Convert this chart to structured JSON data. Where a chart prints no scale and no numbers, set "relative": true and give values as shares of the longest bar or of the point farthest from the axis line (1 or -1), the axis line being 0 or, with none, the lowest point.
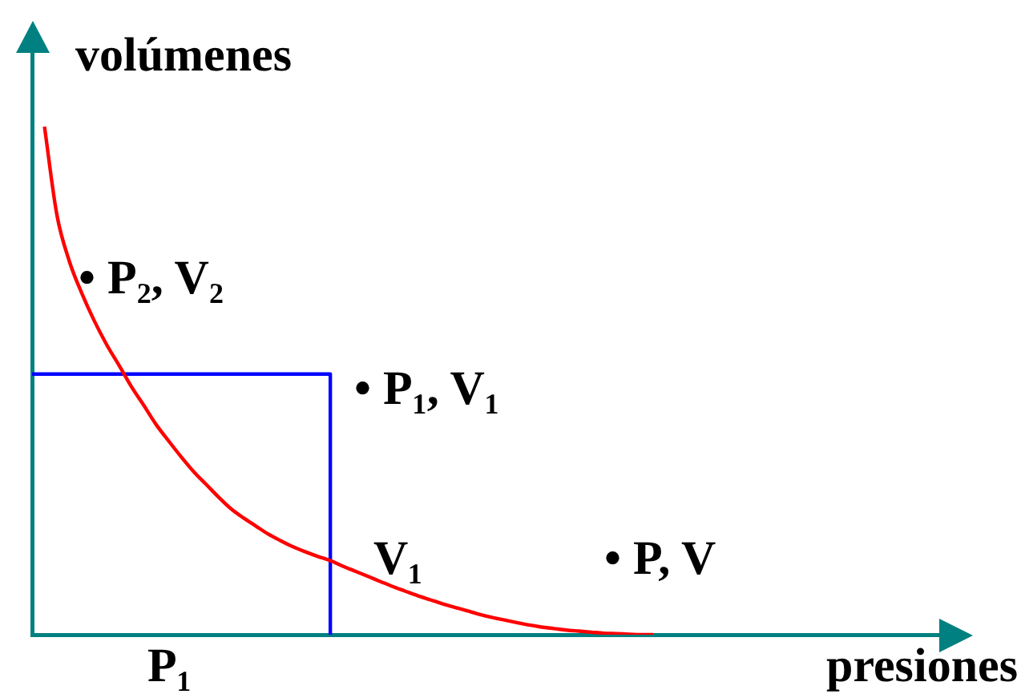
{
  "chart_data": {
    "type": "line",
    "relative": true,
    "xlabel": "presiones",
    "ylabel": "volúmenes",
    "categories": [
      null,
      null,
      null,
      null,
      null,
      null,
      null,
      null,
      null,
      null,
      null,
      null,
      null,
      null,
      null,
      null,
      null,
      null,
      null,
      null,
      null,
      null,
      null,
      null,
      null,
      null,
      null,
      null,
      null,
      null,
      null,
      null,
      null,
      null,
      null,
      null,
      null,
      null,
      null,
      null,
      null,
      null,
      null,
      null,
      null,
      null,
      null,
      null,
      null,
      null,
      null,
      null,
      null,
      null,
      null,
      null,
      null,
      null,
      null,
      null,
      null,
      null,
      null,
      null,
      null,
      null,
      null,
      null,
      null,
      null,
      null,
      null,
      null,
      null
    ],
    "series": [
      {
        "color": "#ff0000",
        "values": [
          null,
          1,
          0.826,
          0.735,
          0.672,
          0.618,
          0.571,
          0.53,
          0.488,
          0.451,
          0.413,
          0.381,
          0.35,
          0.321,
          0.296,
          0.271,
          0.248,
          0.23,
          0.214,
          0.198,
          0.185,
          0.173,
          0.163,
          0.154,
          0.146,
          0.135,
          0.125,
          0.115,
          0.105,
          0.095,
          0.086,
          0.077,
          0.069,
          0.061,
          0.054,
          0.047,
          0.04,
          0.034,
          0.029,
          0.024,
          0.019,
          0.015,
          0.012,
          0.009,
          0.007,
          0.005,
          0.003,
          0.002,
          0.001,
          0,
          0,
          null,
          null,
          null,
          null,
          null,
          null,
          null,
          null,
          null,
          null,
          null,
          null,
          null,
          null,
          null,
          null,
          null,
          null,
          null,
          null,
          null,
          null,
          null
        ]
      },
      {
        "type": "step",
        "color": "#0000ff",
        "values": [
          0.513,
          0.513,
          0.513,
          0.513,
          0.513,
          0.513,
          0.513,
          0.513,
          0.513,
          0.513,
          0.513,
          0.513,
          0.513,
          0.513,
          0.513,
          0.513,
          0.513,
          0.513,
          0.513,
          0.513,
          0.513,
          0.513,
          0.513,
          0.513,
          0,
          null,
          null,
          null,
          null,
          null,
          null,
          null,
          null,
          null,
          null,
          null,
          null,
          null,
          null,
          null,
          null,
          null,
          null,
          null,
          null,
          null,
          null,
          null,
          null,
          null,
          null,
          null,
          null,
          null,
          null,
          null,
          null,
          null,
          null,
          null,
          null,
          null,
          null,
          null,
          null,
          null,
          null,
          null,
          null,
          null,
          null,
          null,
          null,
          null
        ]
      }
    ],
    "annotations": [
      "• P₂, V₂",
      "• P₁, V₁",
      "V₁",
      "• P, V",
      "P₁"
    ],
    "grid": false,
    "legend": false,
    "marker": "none",
    "tick_labels": false
  }
}
